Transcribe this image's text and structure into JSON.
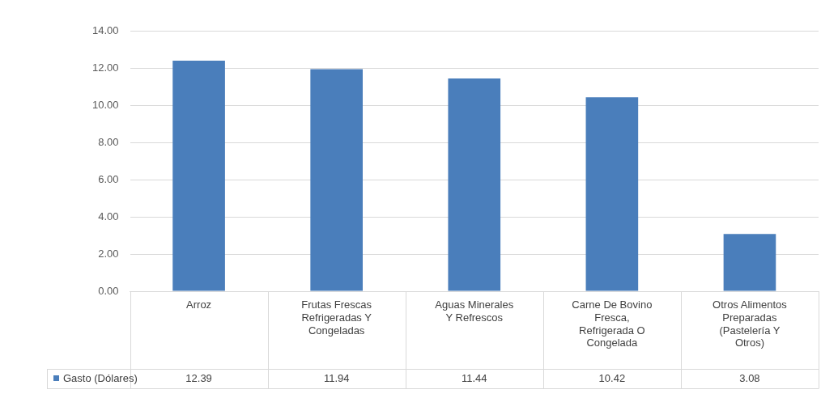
{
  "chart_data": {
    "type": "bar",
    "categories": [
      "Arroz",
      "Frutas Frescas Refrigeradas Y Congeladas",
      "Aguas Minerales Y Refrescos",
      "Carne De Bovino Fresca, Refrigerada O Congelada",
      "Otros Alimentos Preparadas (Pastelería Y Otros)"
    ],
    "series": [
      {
        "name": "Gasto (Dólares)",
        "color": "#4a7ebb",
        "values": [
          12.39,
          11.94,
          11.44,
          10.42,
          3.08
        ]
      }
    ],
    "ylim": [
      0,
      14
    ],
    "yticks": [
      {
        "value": 0,
        "label": "0.00"
      },
      {
        "value": 2,
        "label": "2.00"
      },
      {
        "value": 4,
        "label": "4.00"
      },
      {
        "value": 6,
        "label": "6.00"
      },
      {
        "value": 8,
        "label": "8.00"
      },
      {
        "value": 10,
        "label": "10.00"
      },
      {
        "value": 12,
        "label": "12.00"
      },
      {
        "value": 14,
        "label": "14.00"
      }
    ],
    "grid": "y",
    "legend": "bottom",
    "data_labels": true
  }
}
